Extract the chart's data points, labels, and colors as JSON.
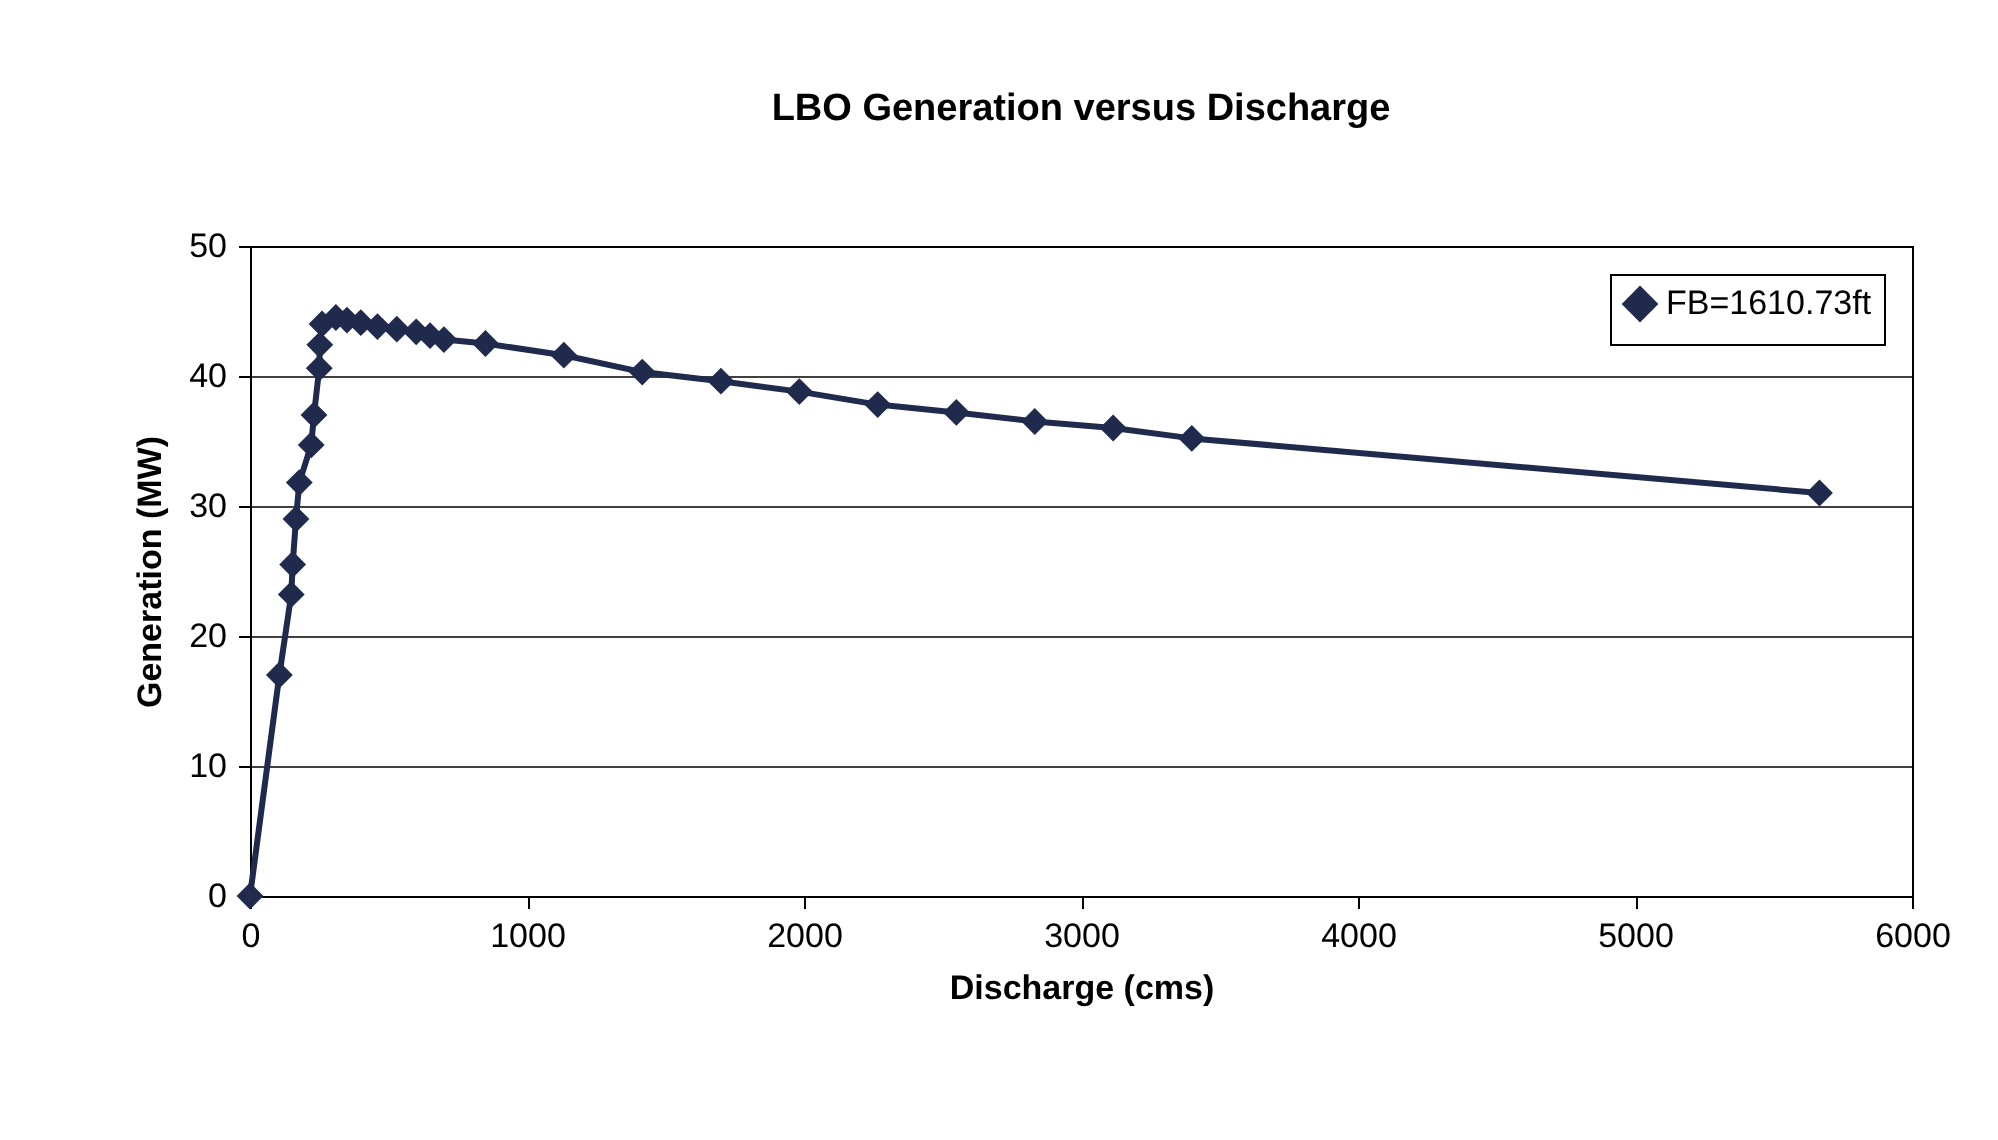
{
  "chart_data": {
    "type": "line",
    "title": "LBO Generation versus Discharge",
    "xlabel": "Discharge (cms)",
    "ylabel": "Generation (MW)",
    "xlim": [
      0,
      6000
    ],
    "xticks": [
      0,
      1000,
      2000,
      3000,
      4000,
      5000,
      6000
    ],
    "ylim": [
      0,
      50
    ],
    "yticks": [
      0,
      10,
      20,
      30,
      40,
      50
    ],
    "grid": "y",
    "legend": "top right",
    "marker": "diamond",
    "line_style": "solid",
    "series": [
      {
        "name": "FB=1610.73ft",
        "color": "#1f2a4d",
        "x": [
          0,
          106,
          149,
          154,
          166,
          178,
          221,
          231,
          250,
          252,
          260,
          310,
          350,
          400,
          460,
          530,
          600,
          650,
          700,
          850,
          1133,
          1416,
          1700,
          1983,
          2266,
          2550,
          2833,
          3116,
          3400,
          5666
        ],
        "values": [
          0,
          17,
          23.2,
          25.5,
          29,
          31.8,
          34.7,
          37,
          40.6,
          42.4,
          44,
          44.5,
          44.3,
          44.1,
          43.8,
          43.6,
          43.4,
          43.1,
          42.8,
          42.5,
          41.6,
          40.3,
          39.6,
          38.8,
          37.8,
          37.2,
          36.5,
          36,
          35.2,
          31
        ]
      }
    ]
  }
}
